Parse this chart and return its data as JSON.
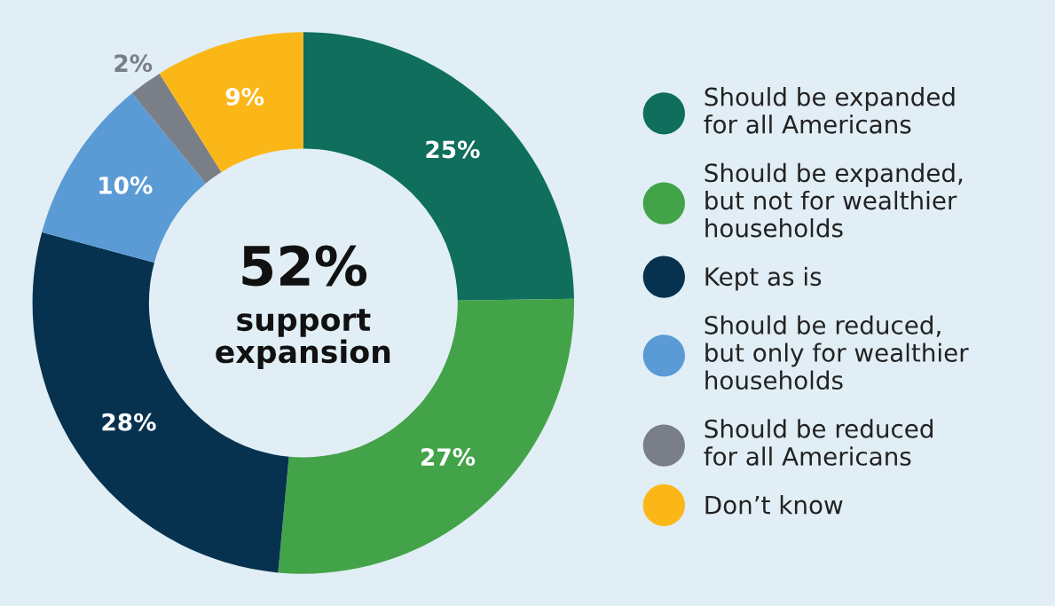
{
  "chart_data": {
    "type": "donut",
    "categories": [
      "Should be expanded\nfor all Americans",
      "Should be expanded,\nbut not for wealthier\nhouseholds",
      "Kept as is",
      "Should be reduced,\nbut only for wealthier\nhouseholds",
      "Should be reduced\nfor all Americans",
      "Don’t know"
    ],
    "values": [
      25,
      27,
      28,
      10,
      2,
      9
    ],
    "colors": [
      "#0f6e5c",
      "#43a348",
      "#06324f",
      "#5b9bd5",
      "#7a7f87",
      "#fbb718"
    ],
    "value_labels": [
      "25%",
      "27%",
      "28%",
      "10%",
      "2%",
      "9%"
    ],
    "annotations": [
      "52%",
      "support\nexpansion"
    ],
    "legend": "right"
  }
}
